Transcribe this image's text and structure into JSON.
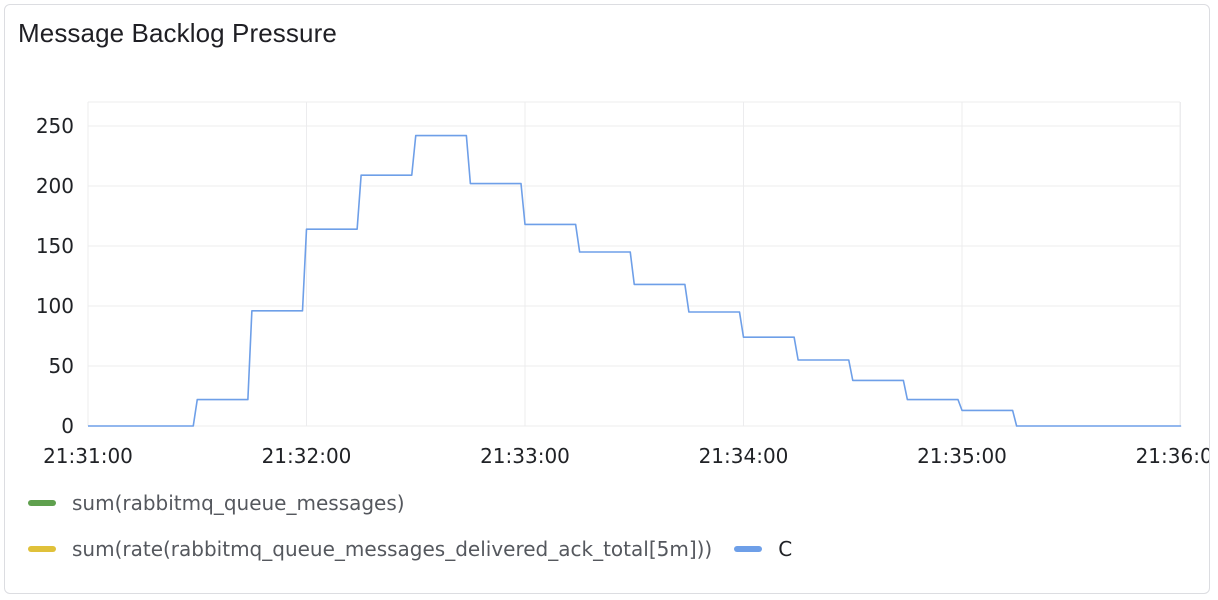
{
  "panel": {
    "title": "Message Backlog Pressure"
  },
  "chart_data": {
    "type": "line",
    "title": "Message Backlog Pressure",
    "xlabel": "",
    "ylabel": "",
    "x_ticks": [
      "21:31:00",
      "21:32:00",
      "21:33:00",
      "21:34:00",
      "21:35:00",
      "21:36:00"
    ],
    "y_ticks": [
      0,
      50,
      100,
      150,
      200,
      250
    ],
    "ylim": [
      0,
      270
    ],
    "grid": true,
    "legend_position": "bottom",
    "series": [
      {
        "name": "C",
        "color": "#6e9fe8",
        "x": [
          "21:31:00",
          "21:31:15",
          "21:31:30",
          "21:31:45",
          "21:32:00",
          "21:32:15",
          "21:32:30",
          "21:32:45",
          "21:33:00",
          "21:33:15",
          "21:33:30",
          "21:33:45",
          "21:34:00",
          "21:34:15",
          "21:34:30",
          "21:34:45",
          "21:35:00",
          "21:35:15",
          "21:35:30",
          "21:35:45",
          "21:36:00"
        ],
        "values": [
          0,
          0,
          22,
          96,
          164,
          209,
          242,
          202,
          168,
          145,
          118,
          95,
          74,
          55,
          38,
          22,
          13,
          0,
          0,
          0,
          0
        ]
      }
    ]
  },
  "legend": {
    "items": [
      {
        "label": "sum(rabbitmq_queue_messages)",
        "color": "#5fa04e"
      },
      {
        "label": "sum(rate(rabbitmq_queue_messages_delivered_ack_total[5m]))",
        "color": "#e0c13a"
      },
      {
        "label": "C",
        "color": "#6e9fe8"
      }
    ]
  }
}
